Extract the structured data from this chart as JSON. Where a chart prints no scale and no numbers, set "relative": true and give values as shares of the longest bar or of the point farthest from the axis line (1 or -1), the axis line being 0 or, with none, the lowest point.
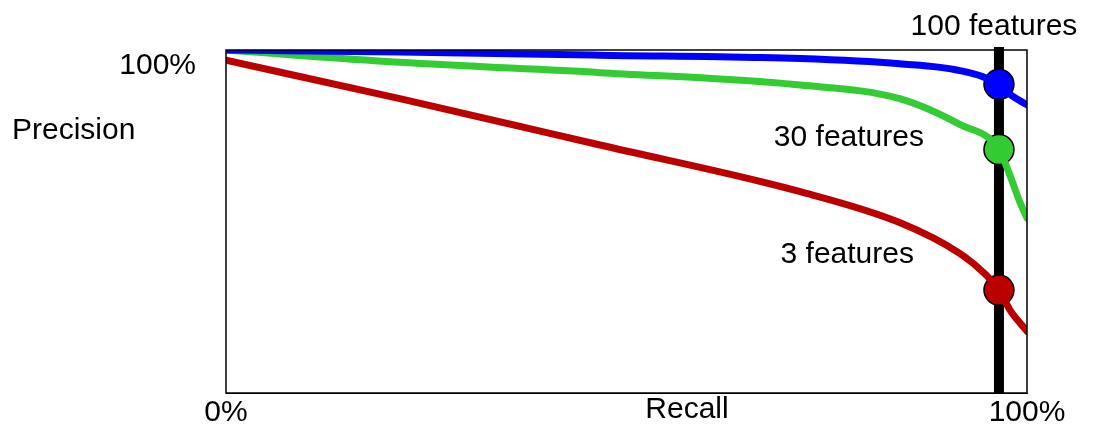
{
  "chart_data": {
    "type": "line",
    "xlabel": "Recall",
    "ylabel": "Precision",
    "relative": true,
    "xlim": [
      0,
      100
    ],
    "xticks": [
      {
        "value": 0,
        "label": "0%"
      },
      {
        "value": 100,
        "label": "100%"
      }
    ],
    "annotations": [
      "100%"
    ],
    "grid": false,
    "legend": false,
    "marker": "none",
    "line_style": "solid",
    "ref_lines": [
      {
        "axis": "x",
        "value": 96.5,
        "color": "#000000"
      }
    ],
    "series": [
      {
        "name": "100 features",
        "color": "#0000ff",
        "x": [
          0,
          21.7,
          46.7,
          71.7,
          84.1,
          91.6,
          96.5,
          97.9,
          100
        ],
        "values": [
          1.0,
          0.994,
          0.985,
          0.975,
          0.96,
          0.94,
          0.9,
          0.87,
          0.84
        ]
      },
      {
        "name": "30 features",
        "color": "#33cc33",
        "x": [
          0,
          21.7,
          46.7,
          71.7,
          84.1,
          91.6,
          96.5,
          97.9,
          99.1,
          100
        ],
        "values": [
          1.0,
          0.964,
          0.934,
          0.898,
          0.858,
          0.783,
          0.71,
          0.633,
          0.557,
          0.51
        ]
      },
      {
        "name": "3 features",
        "color": "#bb0000",
        "x": [
          0,
          21.7,
          46.7,
          71.7,
          84.1,
          91.6,
          94.8,
          96.5,
          97.9,
          100
        ],
        "values": [
          0.97,
          0.858,
          0.723,
          0.587,
          0.497,
          0.407,
          0.346,
          0.3,
          0.241,
          0.18
        ]
      },
      {
        "type": "scatter",
        "marker": "circle",
        "x": [
          96.5,
          96.5,
          96.5
        ],
        "values": [
          0.9,
          0.71,
          0.3
        ],
        "colors": [
          "#0000ff",
          "#33cc33",
          "#bb0000"
        ]
      }
    ]
  }
}
